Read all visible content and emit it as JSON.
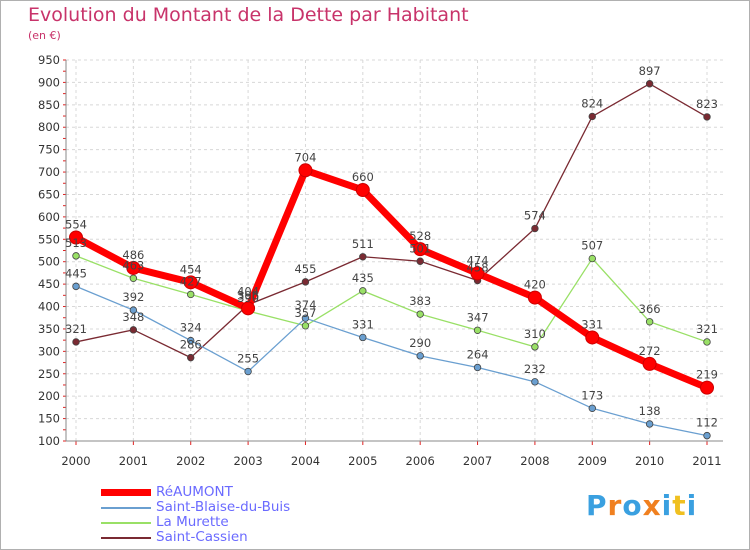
{
  "header": {
    "title": "Evolution du Montant de la Dette par Habitant",
    "subtitle": "(en €)"
  },
  "logo": {
    "text": "Proxiti",
    "colors": [
      "#3aa0e0",
      "#f08020",
      "#3aa0e0",
      "#f08020",
      "#3aa0e0",
      "#f0c020",
      "#3aa0e0"
    ]
  },
  "chart_data": {
    "type": "line",
    "x": [
      "2000",
      "2001",
      "2002",
      "2003",
      "2004",
      "2005",
      "2006",
      "2007",
      "2008",
      "2009",
      "2010",
      "2011"
    ],
    "ylim": [
      100,
      950
    ],
    "yticks": [
      100,
      150,
      200,
      250,
      300,
      350,
      400,
      450,
      500,
      550,
      600,
      650,
      700,
      750,
      800,
      850,
      900,
      950
    ],
    "grid": true,
    "legend_placement": "bottom-left",
    "series": [
      {
        "name": "RéAUMONT",
        "color": "#ff0000",
        "values": [
          554,
          486,
          454,
          396,
          704,
          660,
          528,
          474,
          420,
          331,
          272,
          219
        ]
      },
      {
        "name": "Saint-Blaise-du-Buis",
        "color": "#6a9fd0",
        "values": [
          445,
          392,
          324,
          255,
          374,
          331,
          290,
          264,
          232,
          173,
          138,
          112
        ]
      },
      {
        "name": "La Murette",
        "color": "#99e066",
        "values": [
          513,
          463,
          427,
          390,
          357,
          435,
          383,
          347,
          310,
          507,
          366,
          321
        ]
      },
      {
        "name": "Saint-Cassien",
        "color": "#7a2a32",
        "values": [
          321,
          348,
          286,
          404,
          455,
          511,
          501,
          458,
          574,
          824,
          897,
          823
        ]
      }
    ]
  }
}
